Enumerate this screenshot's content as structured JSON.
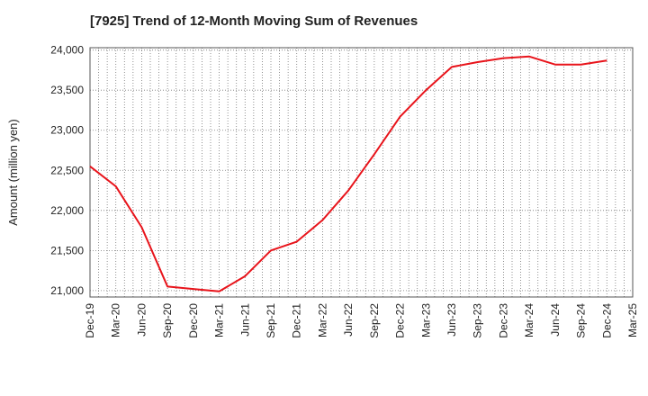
{
  "chart_data": {
    "type": "line",
    "title": "[7925]  Trend of 12-Month Moving Sum of Revenues",
    "xlabel": "",
    "ylabel": "Amount (million yen)",
    "ylim": [
      20920,
      24030
    ],
    "yticks": [
      21000,
      21500,
      22000,
      22500,
      23000,
      23500,
      24000
    ],
    "ytick_labels": [
      "21,000",
      "21,500",
      "22,000",
      "22,500",
      "23,000",
      "23,500",
      "24,000"
    ],
    "x_tick_labels": [
      "Dec-19",
      "Mar-20",
      "Jun-20",
      "Sep-20",
      "Dec-20",
      "Mar-21",
      "Jun-21",
      "Sep-21",
      "Dec-21",
      "Mar-22",
      "Jun-22",
      "Sep-22",
      "Dec-22",
      "Mar-23",
      "Jun-23",
      "Sep-23",
      "Dec-23",
      "Mar-24",
      "Jun-24",
      "Sep-24",
      "Dec-24",
      "Mar-25"
    ],
    "grid": true,
    "series": [
      {
        "color": "#e8141b",
        "x": [
          "Dec-19",
          "Mar-20",
          "Jun-20",
          "Sep-20",
          "Dec-20",
          "Mar-21",
          "Jun-21",
          "Sep-21",
          "Dec-21",
          "Mar-22",
          "Jun-22",
          "Sep-22",
          "Dec-22",
          "Mar-23",
          "Jun-23",
          "Sep-23",
          "Dec-23",
          "Mar-24",
          "Jun-24",
          "Sep-24",
          "Dec-24"
        ],
        "values": [
          22550,
          22300,
          21790,
          21050,
          21020,
          20990,
          21180,
          21500,
          21610,
          21880,
          22250,
          22700,
          23170,
          23500,
          23790,
          23850,
          23900,
          23920,
          23820,
          23820,
          23870
        ]
      }
    ]
  }
}
